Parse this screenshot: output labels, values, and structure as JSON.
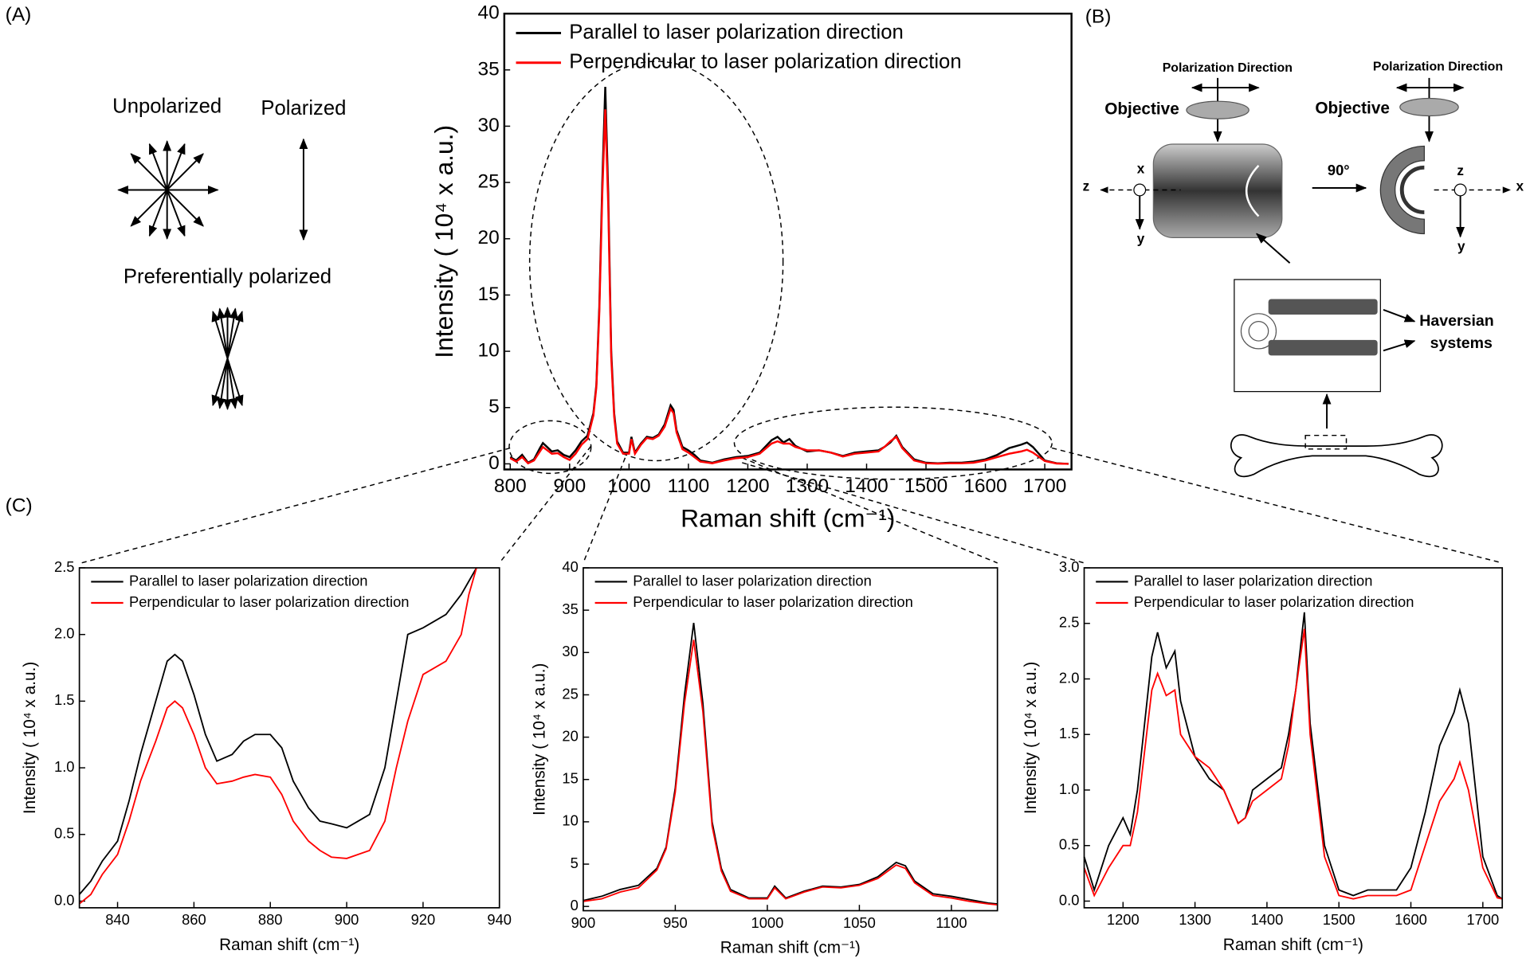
{
  "panel_labels": [
    "(A)",
    "(B)",
    "(C)"
  ],
  "panel_a": {
    "unpolarized": "Unpolarized",
    "polarized": "Polarized",
    "preferential": "Preferentially polarized"
  },
  "panel_b": {
    "polarization": [
      "Polarization Direction",
      "Polarization Direction"
    ],
    "objective": [
      "Objective",
      "Objective"
    ],
    "axes_left": [
      "x",
      "y",
      "z"
    ],
    "axes_right": [
      "z",
      "y",
      "x"
    ],
    "rotation": "90°",
    "haversian": [
      "Haversian",
      "systems"
    ]
  },
  "chart_data": [
    {
      "type": "line",
      "xlabel": "Raman shift (cm⁻¹)",
      "ylabel": "Intensity ( 10⁴ x a.u.)",
      "x": [
        800,
        810,
        820,
        830,
        840,
        850,
        855,
        860,
        870,
        880,
        890,
        900,
        910,
        920,
        930,
        940,
        945,
        950,
        955,
        960,
        965,
        970,
        975,
        980,
        990,
        1000,
        1004,
        1010,
        1020,
        1030,
        1040,
        1050,
        1060,
        1070,
        1075,
        1080,
        1090,
        1100,
        1110,
        1120,
        1140,
        1160,
        1180,
        1200,
        1220,
        1240,
        1250,
        1260,
        1270,
        1280,
        1300,
        1320,
        1340,
        1360,
        1380,
        1400,
        1420,
        1430,
        1440,
        1450,
        1460,
        1480,
        1500,
        1520,
        1540,
        1560,
        1580,
        1600,
        1620,
        1640,
        1660,
        1670,
        1680,
        1700,
        1720,
        1740
      ],
      "series": [
        {
          "name": "Parallel to laser polarization direction",
          "color": "#000000",
          "values": [
            0.6,
            0.3,
            0.8,
            0.1,
            0.4,
            1.4,
            1.85,
            1.6,
            1.1,
            1.2,
            0.8,
            0.6,
            1.2,
            2.0,
            2.5,
            4.5,
            7,
            14,
            25,
            33.5,
            24,
            10,
            4.5,
            2,
            1.0,
            1.0,
            2.4,
            1.0,
            1.8,
            2.4,
            2.3,
            2.6,
            3.5,
            5.2,
            4.8,
            3.0,
            1.5,
            1.2,
            0.8,
            0.3,
            0.1,
            0.4,
            0.6,
            0.7,
            1.0,
            2.1,
            2.4,
            1.9,
            2.2,
            1.6,
            1.1,
            1.2,
            1.0,
            0.7,
            1.0,
            1.1,
            1.2,
            1.5,
            1.9,
            2.5,
            1.5,
            0.4,
            0.1,
            0.05,
            0.1,
            0.1,
            0.2,
            0.4,
            0.8,
            1.4,
            1.7,
            1.9,
            1.5,
            0.3,
            0.05,
            0.0
          ]
        },
        {
          "name": "Perpendicular to laser polarization direction",
          "color": "#ff0000",
          "values": [
            0.5,
            0.2,
            0.6,
            0.05,
            0.3,
            1.1,
            1.5,
            1.3,
            0.9,
            0.95,
            0.6,
            0.35,
            0.9,
            1.7,
            2.2,
            4.3,
            6.8,
            13.5,
            24,
            31.5,
            23,
            9.5,
            4.2,
            1.8,
            0.9,
            0.9,
            2.2,
            0.9,
            1.7,
            2.3,
            2.2,
            2.5,
            3.3,
            4.9,
            4.5,
            2.8,
            1.3,
            1.0,
            0.6,
            0.2,
            0.05,
            0.3,
            0.5,
            0.6,
            0.9,
            1.8,
            2.0,
            1.8,
            1.8,
            1.5,
            1.2,
            1.2,
            1.0,
            0.65,
            0.9,
            1.0,
            1.1,
            1.5,
            2.0,
            2.4,
            1.4,
            0.3,
            0.05,
            0.02,
            0.05,
            0.05,
            0.1,
            0.3,
            0.6,
            0.9,
            1.1,
            1.25,
            1.0,
            0.25,
            0.03,
            0.0
          ]
        }
      ],
      "xlim": [
        790,
        1745
      ],
      "ylim": [
        -0.5,
        40
      ],
      "xticks": [
        800,
        900,
        1000,
        1100,
        1200,
        1300,
        1400,
        1500,
        1600,
        1700
      ],
      "yticks": [
        0,
        5,
        10,
        15,
        20,
        25,
        30,
        35,
        40
      ],
      "legend": "upper left"
    },
    {
      "type": "line",
      "xlabel": "Raman shift (cm⁻¹)",
      "ylabel": "Intensity ( 10⁴ x a.u.)",
      "x": [
        830,
        833,
        836,
        840,
        843,
        846,
        850,
        853,
        855,
        857,
        860,
        863,
        866,
        870,
        873,
        876,
        880,
        883,
        886,
        890,
        893,
        896,
        900,
        903,
        906,
        910,
        913,
        916,
        920,
        923,
        926,
        930,
        932,
        934
      ],
      "series": [
        {
          "name": "Parallel to laser polarization direction",
          "color": "#000000",
          "values": [
            0.05,
            0.15,
            0.3,
            0.45,
            0.75,
            1.1,
            1.5,
            1.8,
            1.85,
            1.8,
            1.55,
            1.25,
            1.05,
            1.1,
            1.2,
            1.25,
            1.25,
            1.15,
            0.9,
            0.7,
            0.6,
            0.58,
            0.55,
            0.6,
            0.65,
            1.0,
            1.5,
            2.0,
            2.05,
            2.1,
            2.15,
            2.3,
            2.4,
            2.5
          ]
        },
        {
          "name": "Perpendicular to laser polarization direction",
          "color": "#ff0000",
          "values": [
            -0.02,
            0.05,
            0.2,
            0.35,
            0.6,
            0.9,
            1.2,
            1.45,
            1.5,
            1.45,
            1.25,
            1.0,
            0.88,
            0.9,
            0.93,
            0.95,
            0.93,
            0.8,
            0.6,
            0.45,
            0.38,
            0.33,
            0.32,
            0.35,
            0.38,
            0.6,
            1.0,
            1.35,
            1.7,
            1.75,
            1.8,
            2.0,
            2.3,
            2.5
          ]
        }
      ],
      "xlim": [
        830,
        940
      ],
      "ylim": [
        -0.05,
        2.5
      ],
      "xticks": [
        840,
        860,
        880,
        900,
        920,
        940
      ],
      "yticks": [
        {
          "value": 0,
          "label": "0.0"
        },
        0.5,
        {
          "value": 1,
          "label": "1.0"
        },
        1.5,
        {
          "value": 2,
          "label": "2.0"
        },
        2.5
      ],
      "legend": "upper left"
    },
    {
      "type": "line",
      "xlabel": "Raman shift (cm⁻¹)",
      "ylabel": "Intensity ( 10⁴ x a.u.)",
      "x": [
        900,
        910,
        920,
        930,
        940,
        945,
        950,
        955,
        960,
        965,
        970,
        975,
        980,
        990,
        1000,
        1004,
        1010,
        1020,
        1030,
        1040,
        1050,
        1060,
        1070,
        1075,
        1080,
        1090,
        1100,
        1110,
        1120,
        1125
      ],
      "series": [
        {
          "name": "Parallel to laser polarization direction",
          "color": "#000000",
          "values": [
            0.7,
            1.2,
            2.0,
            2.5,
            4.5,
            7,
            14,
            25,
            33.5,
            24,
            10,
            4.5,
            2,
            1.0,
            1.0,
            2.4,
            1.0,
            1.8,
            2.4,
            2.3,
            2.6,
            3.5,
            5.2,
            4.8,
            3.0,
            1.5,
            1.2,
            0.8,
            0.4,
            0.3
          ]
        },
        {
          "name": "Perpendicular to laser polarization direction",
          "color": "#ff0000",
          "values": [
            0.6,
            0.9,
            1.7,
            2.2,
            4.3,
            6.8,
            13.5,
            24,
            31.5,
            23,
            9.5,
            4.2,
            1.8,
            0.9,
            0.9,
            2.2,
            0.9,
            1.7,
            2.3,
            2.2,
            2.5,
            3.3,
            4.9,
            4.5,
            2.8,
            1.3,
            1.0,
            0.6,
            0.3,
            0.2
          ]
        }
      ],
      "xlim": [
        900,
        1125
      ],
      "ylim": [
        -0.5,
        40
      ],
      "xticks": [
        900,
        950,
        1000,
        1050,
        1100
      ],
      "yticks": [
        0,
        5,
        10,
        15,
        20,
        25,
        30,
        35,
        40
      ],
      "legend": "upper left"
    },
    {
      "type": "line",
      "xlabel": "Raman shift (cm⁻¹)",
      "ylabel": "Intensity ( 10⁴ x a.u.)",
      "x": [
        1146,
        1160,
        1180,
        1200,
        1210,
        1220,
        1240,
        1248,
        1260,
        1272,
        1280,
        1300,
        1320,
        1340,
        1360,
        1370,
        1380,
        1400,
        1420,
        1430,
        1440,
        1452,
        1460,
        1480,
        1500,
        1520,
        1540,
        1560,
        1580,
        1600,
        1620,
        1640,
        1660,
        1668,
        1680,
        1700,
        1720,
        1727
      ],
      "series": [
        {
          "name": "Parallel to laser polarization direction",
          "color": "#000000",
          "values": [
            0.4,
            0.1,
            0.5,
            0.75,
            0.6,
            1.0,
            2.2,
            2.42,
            2.1,
            2.25,
            1.8,
            1.3,
            1.1,
            1.0,
            0.7,
            0.75,
            1.0,
            1.1,
            1.2,
            1.5,
            1.9,
            2.6,
            1.6,
            0.5,
            0.1,
            0.05,
            0.1,
            0.1,
            0.1,
            0.3,
            0.8,
            1.4,
            1.7,
            1.9,
            1.6,
            0.4,
            0.05,
            0.02
          ]
        },
        {
          "name": "Perpendicular to laser polarization direction",
          "color": "#ff0000",
          "values": [
            0.3,
            0.05,
            0.3,
            0.5,
            0.5,
            0.8,
            1.9,
            2.05,
            1.85,
            1.9,
            1.5,
            1.3,
            1.2,
            1.0,
            0.7,
            0.75,
            0.9,
            1.0,
            1.1,
            1.4,
            1.9,
            2.45,
            1.5,
            0.4,
            0.05,
            0.02,
            0.05,
            0.05,
            0.05,
            0.1,
            0.5,
            0.9,
            1.1,
            1.25,
            1.0,
            0.3,
            0.03,
            0.02
          ]
        }
      ],
      "xlim": [
        1146,
        1727
      ],
      "ylim": [
        -0.06,
        3.0
      ],
      "xticks": [
        1200,
        1300,
        1400,
        1500,
        1600,
        1700
      ],
      "yticks": [
        {
          "value": 0,
          "label": "0.0"
        },
        0.5,
        {
          "value": 1,
          "label": "1.0"
        },
        1.5,
        {
          "value": 2,
          "label": "2.0"
        },
        2.5,
        {
          "value": 3,
          "label": "3.0"
        }
      ],
      "legend": "upper left"
    }
  ]
}
